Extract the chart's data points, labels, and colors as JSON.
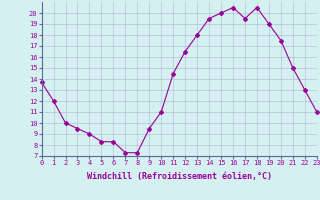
{
  "x": [
    0,
    1,
    2,
    3,
    4,
    5,
    6,
    7,
    8,
    9,
    10,
    11,
    12,
    13,
    14,
    15,
    16,
    17,
    18,
    19,
    20,
    21,
    22,
    23
  ],
  "y": [
    13.7,
    12.0,
    10.0,
    9.5,
    9.0,
    8.3,
    8.3,
    7.3,
    7.3,
    9.5,
    11.0,
    14.5,
    16.5,
    18.0,
    19.5,
    20.0,
    20.5,
    19.5,
    20.5,
    19.0,
    17.5,
    15.0,
    13.0,
    11.0
  ],
  "xlim": [
    0,
    23
  ],
  "ylim": [
    7,
    21
  ],
  "yticks": [
    7,
    8,
    9,
    10,
    11,
    12,
    13,
    14,
    15,
    16,
    17,
    18,
    19,
    20
  ],
  "xticks": [
    0,
    1,
    2,
    3,
    4,
    5,
    6,
    7,
    8,
    9,
    10,
    11,
    12,
    13,
    14,
    15,
    16,
    17,
    18,
    19,
    20,
    21,
    22,
    23
  ],
  "xlabel": "Windchill (Refroidissement éolien,°C)",
  "line_color": "#990099",
  "marker": "D",
  "marker_size": 2,
  "background_color": "#d4f0f0",
  "grid_color": "#aaaacc",
  "tick_color": "#990099",
  "label_color": "#990099",
  "spine_color": "#666699",
  "tick_fontsize": 5,
  "label_fontsize": 6
}
